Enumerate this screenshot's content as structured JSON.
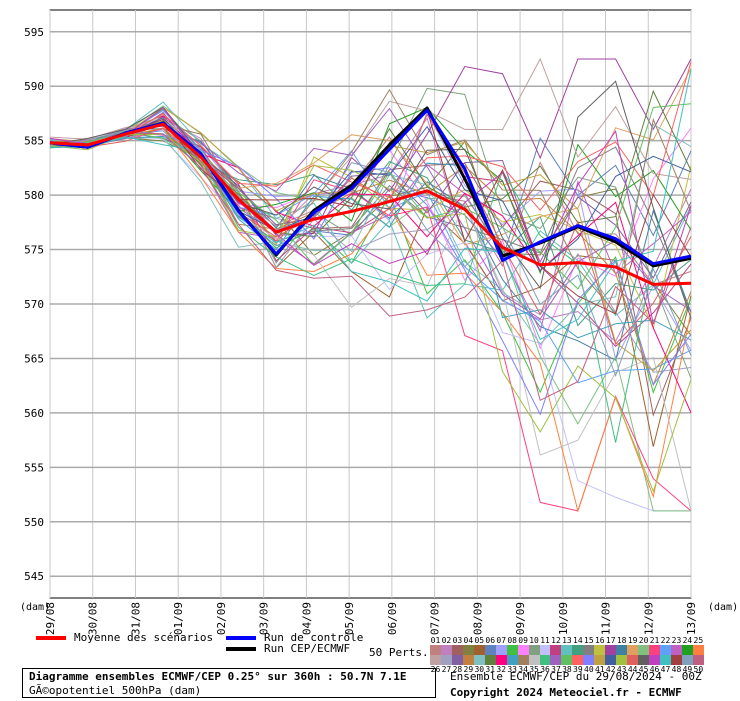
{
  "chart_data": {
    "type": "line",
    "y_ticks": [
      545,
      550,
      555,
      560,
      565,
      570,
      575,
      580,
      585,
      590,
      595
    ],
    "ylim": [
      543,
      597
    ],
    "y_unit_left": "(dam)",
    "y_unit_right": "(dam)",
    "x_ticks": [
      "29/08",
      "30/08",
      "31/08",
      "01/09",
      "02/09",
      "03/09",
      "04/09",
      "05/09",
      "06/09",
      "07/09",
      "08/09",
      "09/09",
      "10/09",
      "11/09",
      "12/09",
      "13/09"
    ],
    "grid": true,
    "legend_placement": "bottom",
    "series": [
      {
        "name": "Moyenne des scénarios",
        "color": "#ff0000",
        "values": [
          584.8,
          584.6,
          585.6,
          586.5,
          583.5,
          579.6,
          576.6,
          577.8,
          578.5,
          579.4,
          580.4,
          578.7,
          575.2,
          573.6,
          573.8,
          573.4,
          571.8,
          571.9
        ]
      },
      {
        "name": "Run de contrôle",
        "color": "#0000ff",
        "values": [
          584.8,
          584.4,
          585.7,
          586.6,
          583.8,
          578.5,
          574.6,
          578.4,
          580.6,
          584.2,
          587.8,
          582.4,
          574.0,
          575.7,
          577.2,
          576.0,
          573.7,
          574.4
        ]
      },
      {
        "name": "Run CEP/ECMWF",
        "color": "#000000",
        "values": [
          584.8,
          584.4,
          585.7,
          586.6,
          583.8,
          578.6,
          574.5,
          578.6,
          580.9,
          584.6,
          588.0,
          581.5,
          574.4,
          575.6,
          577.1,
          575.7,
          573.5,
          574.2
        ]
      }
    ],
    "perturbations": {
      "count": 50,
      "colors": [
        "#c08080",
        "#c080c0",
        "#a06060",
        "#808040",
        "#a06030",
        "#6080c0",
        "#a0a0ff",
        "#40c040",
        "#ff80ff",
        "#80a080",
        "#c0c0ff",
        "#c04080",
        "#60c0c0",
        "#40a080",
        "#808080",
        "#c0c040",
        "#a040a0",
        "#4080a0",
        "#e0a060",
        "#80c080",
        "#ff4080",
        "#60a0ff",
        "#c060c0",
        "#20a020",
        "#ff8040",
        "#c0a0a0",
        "#a0a0c0",
        "#8060a0",
        "#c08040",
        "#80c0c0",
        "#608040",
        "#ff0080",
        "#40a0c0",
        "#a08060",
        "#c0c0c0",
        "#40c080",
        "#a060c0",
        "#60c060",
        "#ff6060",
        "#8080ff",
        "#c0a040",
        "#4060a0",
        "#a0c040",
        "#e06060",
        "#606060",
        "#c040c0",
        "#40c0c0",
        "#a04040",
        "#80a0c0",
        "#c06080"
      ]
    }
  },
  "legend": {
    "mean_label": "Moyenne des scénarios",
    "control_label": "Run de contrôle",
    "cep_label": "Run CEP/ECMWF",
    "perts_label": "50 Perts.",
    "pert_numbers_top": [
      "01",
      "02",
      "03",
      "04",
      "05",
      "06",
      "07",
      "08",
      "09",
      "10",
      "11",
      "12",
      "13",
      "14",
      "15",
      "16",
      "17",
      "18",
      "19",
      "20",
      "21",
      "22",
      "23",
      "24",
      "25"
    ],
    "pert_numbers_bottom": [
      "26",
      "27",
      "28",
      "29",
      "30",
      "31",
      "32",
      "33",
      "34",
      "35",
      "36",
      "37",
      "38",
      "39",
      "40",
      "41",
      "42",
      "43",
      "44",
      "45",
      "46",
      "47",
      "48",
      "49",
      "50"
    ]
  },
  "footer": {
    "title_line1": "Diagramme ensembles ECMWF/CEP 0.25° sur 360h : 50.7N 7.1E",
    "title_line2": "GÃ©opotentiel 500hPa (dam)",
    "run_info": "Ensemble ECMWF/CEP du 29/08/2024 - 00Z",
    "copyright": "Copyright 2024 Meteociel.fr - ECMWF"
  }
}
